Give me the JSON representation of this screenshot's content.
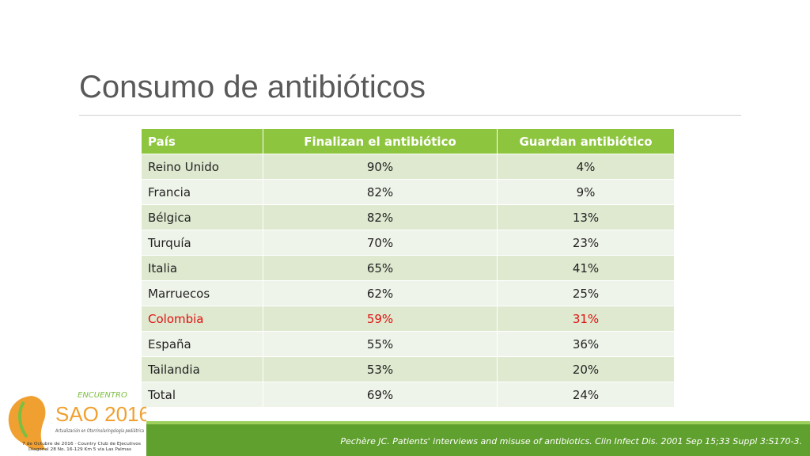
{
  "header": {
    "title": "Consumo de antibióticos"
  },
  "table": {
    "columns": [
      "País",
      "Finalizan el antibiótico",
      "Guardan antibiótico"
    ],
    "rows": [
      {
        "cells": [
          "Reino Unido",
          "90%",
          "4%"
        ]
      },
      {
        "cells": [
          "Francia",
          "82%",
          "9%"
        ]
      },
      {
        "cells": [
          "Bélgica",
          "82%",
          "13%"
        ]
      },
      {
        "cells": [
          "Turquía",
          "70%",
          "23%"
        ]
      },
      {
        "cells": [
          "Italia",
          "65%",
          "41%"
        ]
      },
      {
        "cells": [
          "Marruecos",
          "62%",
          "25%"
        ]
      },
      {
        "cells": [
          "Colombia",
          "59%",
          "31%"
        ],
        "color": "#e01010"
      },
      {
        "cells": [
          "España",
          "55%",
          "36%"
        ]
      },
      {
        "cells": [
          "Tailandia",
          "53%",
          "20%"
        ]
      },
      {
        "cells": [
          "Total",
          "69%",
          "24%"
        ]
      }
    ]
  },
  "footer": {
    "citation": "Pechère JC. Patients' interviews and misuse of antibiotics. Clin Infect Dis. 2001 Sep 15;33 Suppl 3:S170-3."
  },
  "logo": {
    "event": "ENCUENTRO",
    "name": "SAO 2016",
    "tagline": "Actualización en Otorrinolaringología pediátrica",
    "date_line": "7 de Octubre de 2016 · Country Club de Ejecutivos",
    "address": "Diagonal 28 No. 16-129 Km 5 vía Las Palmas"
  }
}
